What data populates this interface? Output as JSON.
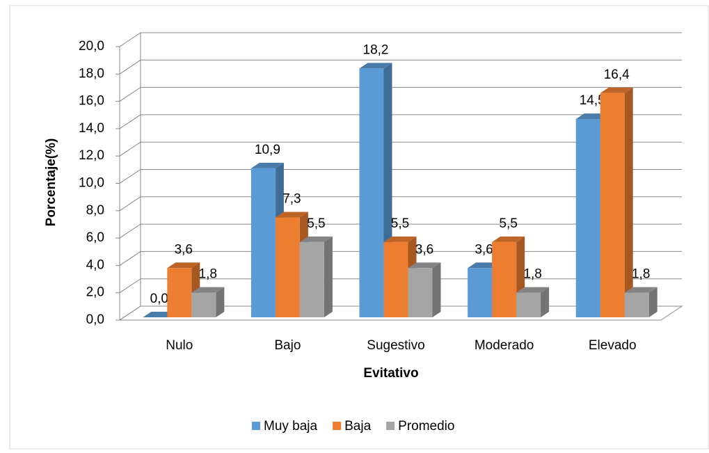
{
  "chart_data": {
    "type": "bar3d",
    "x_label": "Evitativo",
    "y_label": "Porcentaje(%)",
    "categories": [
      "Nulo",
      "Bajo",
      "Sugestivo",
      "Moderado",
      "Elevado"
    ],
    "series": [
      {
        "name": "Muy baja",
        "color": "#5b9bd5",
        "values": [
          0.0,
          10.9,
          18.2,
          3.6,
          14.5
        ],
        "value_labels": [
          "0,0",
          "10,9",
          "18,2",
          "3,6",
          "14,5"
        ]
      },
      {
        "name": "Baja",
        "color": "#ed7d31",
        "values": [
          3.6,
          7.3,
          5.5,
          5.5,
          16.4
        ],
        "value_labels": [
          "3,6",
          "7,3",
          "5,5",
          "5,5",
          "16,4"
        ]
      },
      {
        "name": "Promedio",
        "color": "#a5a5a5",
        "values": [
          1.8,
          5.5,
          3.6,
          1.8,
          1.8
        ],
        "value_labels": [
          "1,8",
          "5,5",
          "3,6",
          "1,8",
          "1,8"
        ]
      }
    ],
    "ylim": [
      0,
      20
    ],
    "yticks": [
      {
        "value": 0,
        "label": "0,0"
      },
      {
        "value": 2,
        "label": "2,0"
      },
      {
        "value": 4,
        "label": "4,0"
      },
      {
        "value": 6,
        "label": "6,0"
      },
      {
        "value": 8,
        "label": "8,0"
      },
      {
        "value": 10,
        "label": "10,0"
      },
      {
        "value": 12,
        "label": "12,0"
      },
      {
        "value": 14,
        "label": "14,0"
      },
      {
        "value": 16,
        "label": "16,0"
      },
      {
        "value": 18,
        "label": "18,0"
      },
      {
        "value": 20,
        "label": "20,0"
      }
    ],
    "grid": true,
    "legend": "bottom"
  }
}
